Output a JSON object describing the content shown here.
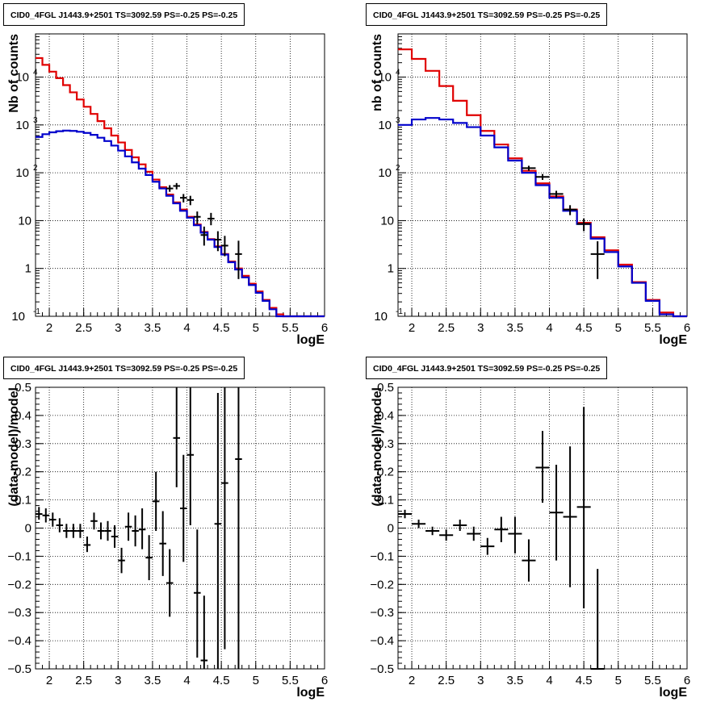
{
  "chart_data": [
    {
      "type": "line",
      "title": "CID0_4FGL J1443.9+2501 TS=3092.59 PS=-0.25 PS=-0.25",
      "xlabel": "logE",
      "ylabel": "Nb of counts",
      "xlim": [
        1.8,
        6
      ],
      "ylim": [
        0.1,
        80000
      ],
      "log_y": true,
      "grid": true,
      "xticks": [
        2,
        2.5,
        3,
        3.5,
        4,
        4.5,
        5,
        5.5,
        6
      ],
      "yticks": [
        {
          "v": 0.1,
          "t": "10"
        },
        {
          "v": 1,
          "t": "1"
        },
        {
          "v": 10,
          "t": "10"
        },
        {
          "v": 100,
          "t": "10"
        },
        {
          "v": 1000,
          "t": "10"
        },
        {
          "v": 10000,
          "t": "10"
        }
      ],
      "bin_edges": [
        1.8,
        1.9,
        2.0,
        2.1,
        2.2,
        2.3,
        2.4,
        2.5,
        2.6,
        2.7,
        2.8,
        2.9,
        3.0,
        3.1,
        3.2,
        3.3,
        3.4,
        3.5,
        3.6,
        3.7,
        3.8,
        3.9,
        4.0,
        4.1,
        4.2,
        4.3,
        4.4,
        4.5,
        4.6,
        4.7,
        4.8,
        4.9,
        5.0,
        5.1,
        5.2,
        5.3,
        5.4,
        5.5,
        5.6,
        5.7,
        5.8,
        5.9,
        6.0
      ],
      "series": [
        {
          "color": "#e00000",
          "values": [
            25000,
            18000,
            13000,
            9500,
            6800,
            4800,
            3400,
            2400,
            1700,
            1200,
            850,
            600,
            430,
            300,
            210,
            150,
            105,
            72,
            50,
            35,
            24,
            17,
            12,
            8.3,
            5.8,
            4.1,
            2.9,
            2.0,
            1.4,
            1.0,
            0.7,
            0.48,
            0.33,
            0.22,
            0.15,
            0.11,
            0.1,
            0.1,
            0.1,
            0.1,
            0.1,
            0.1
          ]
        },
        {
          "color": "#0000cc",
          "values": [
            560,
            640,
            700,
            740,
            760,
            750,
            720,
            680,
            620,
            540,
            460,
            370,
            290,
            220,
            165,
            122,
            90,
            65,
            47,
            33,
            23,
            16,
            11.5,
            8,
            5.6,
            4,
            2.8,
            1.95,
            1.35,
            0.95,
            0.65,
            0.45,
            0.31,
            0.21,
            0.14,
            0.1,
            0.1,
            0.1,
            0.1,
            0.1,
            0.1,
            0.1
          ]
        }
      ],
      "points": [
        {
          "x": 3.75,
          "y": 47,
          "lo": 40,
          "hi": 55
        },
        {
          "x": 3.85,
          "y": 53,
          "lo": 45,
          "hi": 61
        },
        {
          "x": 3.95,
          "y": 30,
          "lo": 24,
          "hi": 36
        },
        {
          "x": 4.05,
          "y": 27,
          "lo": 21,
          "hi": 33
        },
        {
          "x": 4.15,
          "y": 12,
          "lo": 8.5,
          "hi": 15.5
        },
        {
          "x": 4.25,
          "y": 5,
          "lo": 3,
          "hi": 7.5
        },
        {
          "x": 4.35,
          "y": 11,
          "lo": 8,
          "hi": 14.5
        },
        {
          "x": 4.45,
          "y": 4,
          "lo": 2.3,
          "hi": 6
        },
        {
          "x": 4.55,
          "y": 3,
          "lo": 1.8,
          "hi": 4.8
        },
        {
          "x": 4.75,
          "y": 2,
          "lo": 0.6,
          "hi": 3.8
        }
      ]
    },
    {
      "type": "line",
      "title": "CID0_4FGL J1443.9+2501 TS=3092.59 PS=-0.25 PS=-0.25",
      "xlabel": "logE",
      "ylabel": "nb of counts",
      "xlim": [
        1.8,
        6
      ],
      "ylim": [
        0.1,
        80000
      ],
      "log_y": true,
      "grid": true,
      "xticks": [
        2,
        2.5,
        3,
        3.5,
        4,
        4.5,
        5,
        5.5,
        6
      ],
      "yticks": [
        {
          "v": 0.1,
          "t": "10"
        },
        {
          "v": 1,
          "t": "1"
        },
        {
          "v": 10,
          "t": "10"
        },
        {
          "v": 100,
          "t": "10"
        },
        {
          "v": 1000,
          "t": "10"
        },
        {
          "v": 10000,
          "t": "10"
        }
      ],
      "bin_edges": [
        1.8,
        2.0,
        2.2,
        2.4,
        2.6,
        2.8,
        3.0,
        3.2,
        3.4,
        3.6,
        3.8,
        4.0,
        4.2,
        4.4,
        4.6,
        4.8,
        5.0,
        5.2,
        5.4,
        5.6,
        5.8,
        6.0
      ],
      "series": [
        {
          "color": "#e00000",
          "values": [
            38000,
            24000,
            13500,
            6500,
            3200,
            1600,
            750,
            390,
            200,
            110,
            60,
            32,
            17,
            9,
            4.5,
            2.4,
            1.2,
            0.52,
            0.22,
            0.12,
            0.1
          ]
        },
        {
          "color": "#0000cc",
          "values": [
            1000,
            1300,
            1400,
            1300,
            1100,
            900,
            600,
            340,
            180,
            100,
            55,
            30,
            16,
            8.5,
            4.2,
            2.2,
            1.1,
            0.5,
            0.21,
            0.11,
            0.1
          ]
        }
      ],
      "points": [
        {
          "x": 3.7,
          "y": 125,
          "lo": 110,
          "hi": 140
        },
        {
          "x": 3.9,
          "y": 82,
          "lo": 71,
          "hi": 94
        },
        {
          "x": 4.1,
          "y": 36,
          "lo": 30,
          "hi": 42
        },
        {
          "x": 4.3,
          "y": 17,
          "lo": 13,
          "hi": 21
        },
        {
          "x": 4.5,
          "y": 8.5,
          "lo": 6,
          "hi": 11
        },
        {
          "x": 4.7,
          "y": 2,
          "lo": 0.6,
          "hi": 3.7
        }
      ]
    },
    {
      "type": "scatter",
      "title": "CID0_4FGL J1443.9+2501 TS=3092.59 PS=-0.25 PS=-0.25",
      "xlabel": "logE",
      "ylabel": "(data-model)/model",
      "xlim": [
        1.8,
        6
      ],
      "ylim": [
        -0.5,
        0.5
      ],
      "grid": true,
      "xticks": [
        2,
        2.5,
        3,
        3.5,
        4,
        4.5,
        5,
        5.5,
        6
      ],
      "yticks": [
        -0.5,
        -0.4,
        -0.3,
        -0.2,
        -0.1,
        0,
        0.1,
        0.2,
        0.3,
        0.4,
        0.5
      ],
      "xerr": 0.05,
      "points": [
        {
          "x": 1.85,
          "y": 0.05,
          "lo": 0.03,
          "hi": 0.075
        },
        {
          "x": 1.95,
          "y": 0.045,
          "lo": 0.02,
          "hi": 0.07
        },
        {
          "x": 2.05,
          "y": 0.03,
          "lo": 0.005,
          "hi": 0.055
        },
        {
          "x": 2.15,
          "y": 0.01,
          "lo": -0.015,
          "hi": 0.035
        },
        {
          "x": 2.25,
          "y": -0.01,
          "lo": -0.035,
          "hi": 0.015
        },
        {
          "x": 2.35,
          "y": -0.01,
          "lo": -0.035,
          "hi": 0.015
        },
        {
          "x": 2.45,
          "y": -0.01,
          "lo": -0.035,
          "hi": 0.015
        },
        {
          "x": 2.55,
          "y": -0.06,
          "lo": -0.085,
          "hi": -0.03
        },
        {
          "x": 2.65,
          "y": 0.025,
          "lo": -0.005,
          "hi": 0.055
        },
        {
          "x": 2.75,
          "y": -0.01,
          "lo": -0.04,
          "hi": 0.02
        },
        {
          "x": 2.85,
          "y": -0.01,
          "lo": -0.045,
          "hi": 0.025
        },
        {
          "x": 2.95,
          "y": -0.03,
          "lo": -0.07,
          "hi": 0.01
        },
        {
          "x": 3.05,
          "y": -0.115,
          "lo": -0.16,
          "hi": -0.07
        },
        {
          "x": 3.15,
          "y": 0.005,
          "lo": -0.045,
          "hi": 0.055
        },
        {
          "x": 3.25,
          "y": -0.01,
          "lo": -0.065,
          "hi": 0.045
        },
        {
          "x": 3.35,
          "y": -0.005,
          "lo": -0.075,
          "hi": 0.07
        },
        {
          "x": 3.45,
          "y": -0.105,
          "lo": -0.185,
          "hi": -0.025
        },
        {
          "x": 3.55,
          "y": 0.095,
          "lo": -0.01,
          "hi": 0.2
        },
        {
          "x": 3.65,
          "y": -0.055,
          "lo": -0.17,
          "hi": 0.06
        },
        {
          "x": 3.75,
          "y": -0.195,
          "lo": -0.315,
          "hi": -0.075
        },
        {
          "x": 3.85,
          "y": 0.32,
          "lo": 0.145,
          "hi": 0.5
        },
        {
          "x": 3.95,
          "y": 0.07,
          "lo": -0.12,
          "hi": 0.26
        },
        {
          "x": 4.05,
          "y": 0.26,
          "lo": 0.01,
          "hi": 0.5
        },
        {
          "x": 4.15,
          "y": -0.23,
          "lo": -0.46,
          "hi": -0.005
        },
        {
          "x": 4.25,
          "y": -0.47,
          "lo": -0.5,
          "hi": -0.24
        },
        {
          "x": 4.45,
          "y": 0.015,
          "lo": -0.5,
          "hi": 0.48
        },
        {
          "x": 4.55,
          "y": 0.16,
          "lo": -0.43,
          "hi": 0.5
        },
        {
          "x": 4.75,
          "y": 0.245,
          "lo": -0.5,
          "hi": 0.5
        }
      ]
    },
    {
      "type": "scatter",
      "title": "CID0_4FGL J1443.9+2501 TS=3092.59 PS=-0.25 PS=-0.25",
      "xlabel": "logE",
      "ylabel": "(data-model)/model",
      "xlim": [
        1.8,
        6
      ],
      "ylim": [
        -0.5,
        0.5
      ],
      "grid": true,
      "xticks": [
        2,
        2.5,
        3,
        3.5,
        4,
        4.5,
        5,
        5.5,
        6
      ],
      "yticks": [
        -0.5,
        -0.4,
        -0.3,
        -0.2,
        -0.1,
        0,
        0.1,
        0.2,
        0.3,
        0.4,
        0.5
      ],
      "xerr": 0.1,
      "points": [
        {
          "x": 1.9,
          "y": 0.05,
          "lo": 0.035,
          "hi": 0.065
        },
        {
          "x": 2.1,
          "y": 0.015,
          "lo": 0.0,
          "hi": 0.03
        },
        {
          "x": 2.3,
          "y": -0.01,
          "lo": -0.025,
          "hi": 0.005
        },
        {
          "x": 2.5,
          "y": -0.025,
          "lo": -0.045,
          "hi": -0.005
        },
        {
          "x": 2.7,
          "y": 0.01,
          "lo": -0.01,
          "hi": 0.03
        },
        {
          "x": 2.9,
          "y": -0.02,
          "lo": -0.045,
          "hi": 0.005
        },
        {
          "x": 3.1,
          "y": -0.065,
          "lo": -0.095,
          "hi": -0.035
        },
        {
          "x": 3.3,
          "y": -0.005,
          "lo": -0.05,
          "hi": 0.04
        },
        {
          "x": 3.5,
          "y": -0.02,
          "lo": -0.09,
          "hi": 0.04
        },
        {
          "x": 3.7,
          "y": -0.115,
          "lo": -0.19,
          "hi": -0.04
        },
        {
          "x": 3.9,
          "y": 0.215,
          "lo": 0.09,
          "hi": 0.345
        },
        {
          "x": 4.1,
          "y": 0.055,
          "lo": -0.115,
          "hi": 0.225
        },
        {
          "x": 4.3,
          "y": 0.04,
          "lo": -0.21,
          "hi": 0.29
        },
        {
          "x": 4.5,
          "y": 0.075,
          "lo": -0.285,
          "hi": 0.43
        },
        {
          "x": 4.7,
          "y": -0.5,
          "lo": -0.5,
          "hi": -0.145
        }
      ]
    }
  ]
}
